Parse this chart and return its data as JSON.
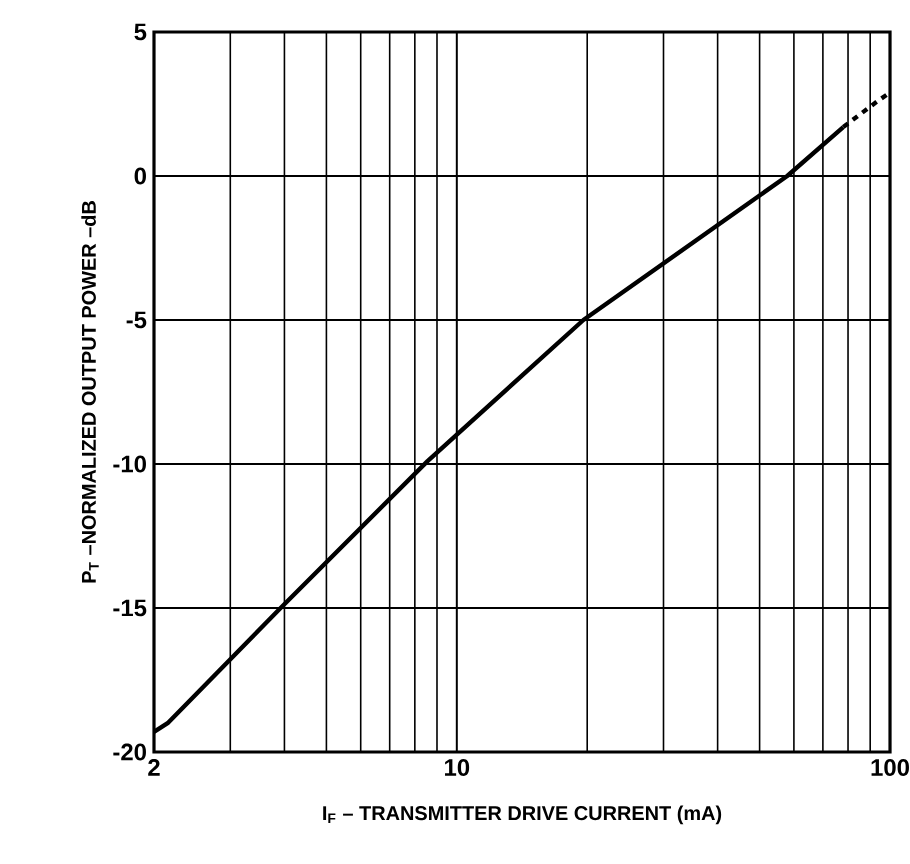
{
  "chart_data": {
    "type": "line",
    "xlabel": "I$_{F}$ – TRANSMITTER DRIVE CURRENT (mA)",
    "ylabel": "P$_{T}$ –NORMALIZED OUTPUT POWER –dB",
    "log": "x",
    "xlim": [
      2,
      100
    ],
    "ylim": [
      -20,
      5
    ],
    "xticks": [
      2,
      10,
      100
    ],
    "yticks": [
      -20,
      -15,
      -10,
      -5,
      0,
      5
    ],
    "grid": true,
    "series": [
      {
        "color": "#000000",
        "line_style": "solid",
        "x": [
          2,
          2.15,
          3.92,
          8.56,
          19.6,
          57.9,
          78
        ],
        "values": [
          -19.3,
          -19.0,
          -15,
          -9.9,
          -5,
          0,
          1.7
        ]
      },
      {
        "color": "#000000",
        "line_style": "dashed",
        "x": [
          78,
          93.6,
          100
        ],
        "values": [
          1.7,
          2.6,
          2.9
        ]
      }
    ]
  }
}
